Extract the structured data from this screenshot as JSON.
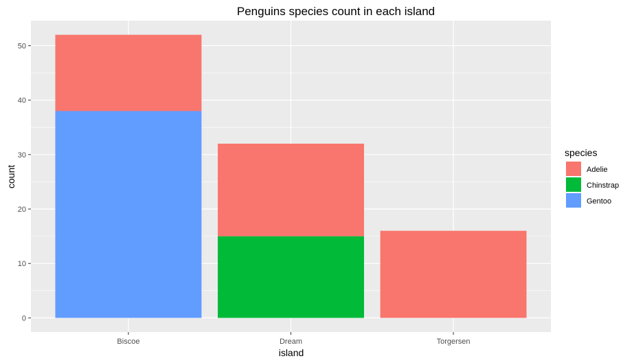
{
  "chart_data": {
    "type": "bar",
    "stacked": true,
    "title": "Penguins species count in each island",
    "xlabel": "island",
    "ylabel": "count",
    "categories": [
      "Biscoe",
      "Dream",
      "Torgersen"
    ],
    "series": [
      {
        "name": "Adelie",
        "color": "#F8766D",
        "values": [
          14,
          17,
          16
        ]
      },
      {
        "name": "Chinstrap",
        "color": "#00BA38",
        "values": [
          0,
          15,
          0
        ]
      },
      {
        "name": "Gentoo",
        "color": "#619CFF",
        "values": [
          38,
          0,
          0
        ]
      }
    ],
    "stack_order_bottom_to_top": [
      "Gentoo",
      "Chinstrap",
      "Adelie"
    ],
    "ylim": [
      -2.6,
      54.6
    ],
    "yticks": [
      0,
      10,
      20,
      30,
      40,
      50
    ],
    "grid": true,
    "legend": {
      "title": "species",
      "position": "right"
    },
    "panel_background": "#EBEBEB"
  }
}
